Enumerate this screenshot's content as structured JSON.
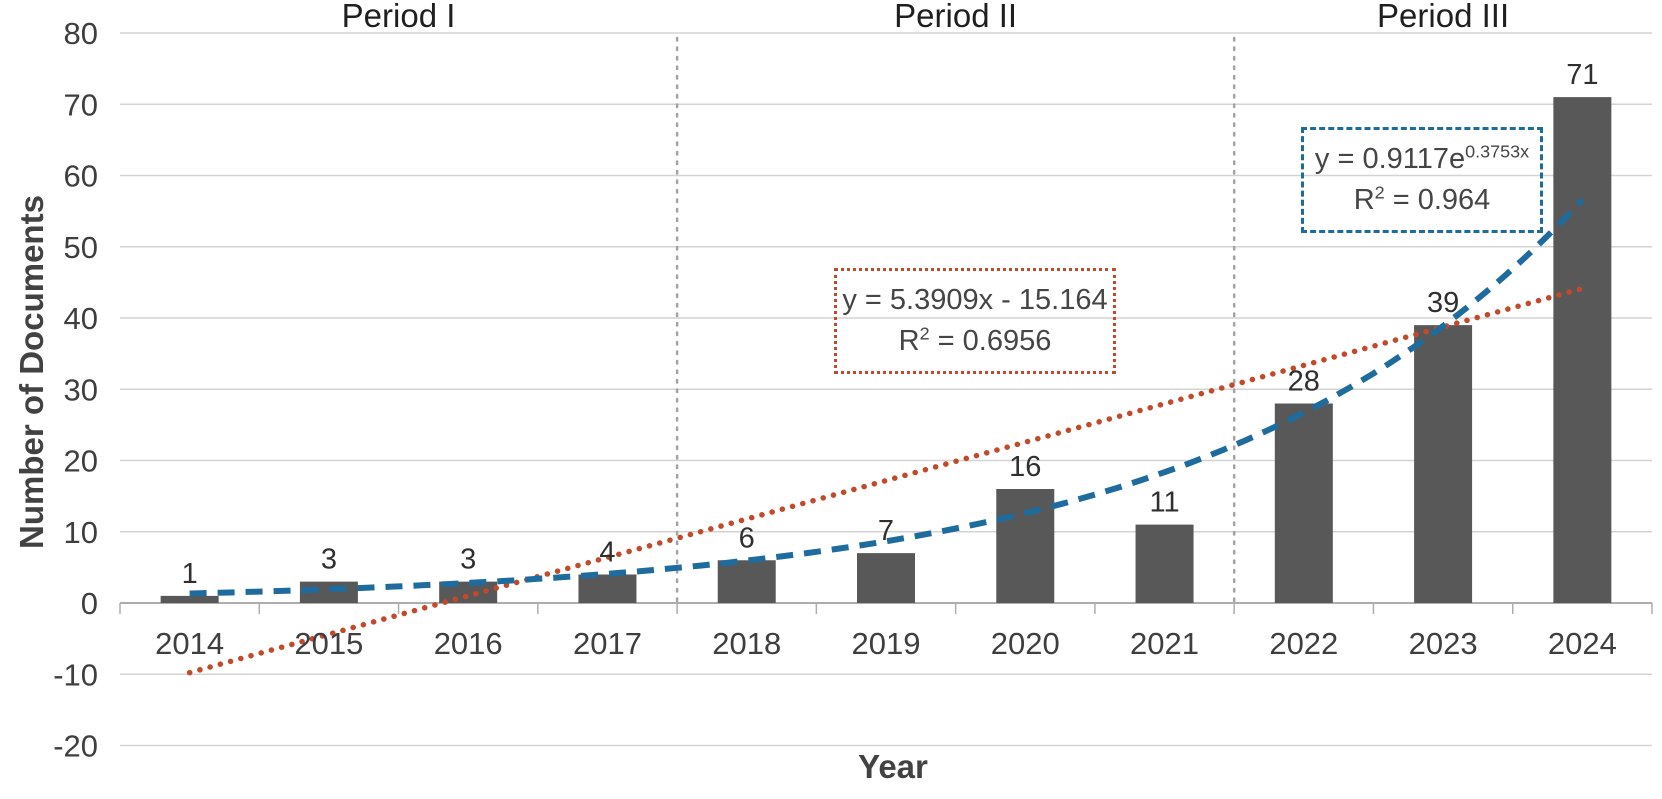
{
  "chart_data": {
    "type": "bar",
    "title": "",
    "xlabel": "Year",
    "ylabel": "Number of Documents",
    "categories": [
      "2014",
      "2015",
      "2016",
      "2017",
      "2018",
      "2019",
      "2020",
      "2021",
      "2022",
      "2023",
      "2024"
    ],
    "values": [
      1,
      3,
      3,
      4,
      6,
      7,
      16,
      11,
      28,
      39,
      71
    ],
    "ylim": [
      -20,
      80
    ],
    "ytick_step": 10,
    "grid": true,
    "legend_position": "none",
    "periods": [
      {
        "label": "Period I",
        "start": 0,
        "end": 3
      },
      {
        "label": "Period II",
        "start": 4,
        "end": 7
      },
      {
        "label": "Period III",
        "start": 8,
        "end": 10
      }
    ],
    "trendlines": [
      {
        "id": "linear",
        "equation": "y = 5.3909x - 15.164",
        "r2_prefix": "R",
        "r2_sup": "2",
        "r2_suffix": " = 0.6956",
        "slope": 5.3909,
        "intercept": -15.164,
        "color": "#C24A2B",
        "dash_style": "dotted"
      },
      {
        "id": "exponential",
        "equation_base": "y = 0.9117e",
        "equation_sup": "0.3753x",
        "r2_prefix": "R",
        "r2_sup": "2",
        "r2_suffix": " = 0.964",
        "a": 0.9117,
        "b": 0.3753,
        "color": "#1E6C9E",
        "dash_style": "dashed"
      }
    ],
    "colors": {
      "bar": "#585858",
      "grid": "#D3D3D3",
      "axis": "#ADADAD",
      "separator": "#A3A3A3",
      "tick_text": "#3E3E3E",
      "value_label": "#2F2F2F",
      "period_label": "#1F1F1F",
      "axis_title": "#424242"
    }
  }
}
